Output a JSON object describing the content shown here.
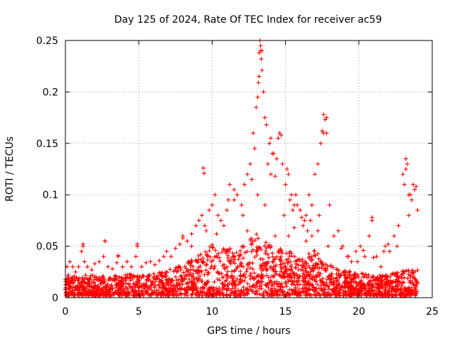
{
  "chart_data": {
    "type": "scatter",
    "title": "Day 125 of 2024, Rate Of TEC Index for receiver ac59",
    "xlabel": "GPS time / hours",
    "ylabel": "ROTI / TECUs",
    "xlim": [
      0,
      25
    ],
    "ylim": [
      0,
      0.25
    ],
    "x_ticks": [
      "0",
      "5",
      "10",
      "15",
      "20",
      "25"
    ],
    "y_ticks": [
      "0",
      "0.05",
      "0.1",
      "0.15",
      "0.2",
      "0.25"
    ],
    "x_tick_values": [
      0,
      5,
      10,
      15,
      20,
      25
    ],
    "y_tick_values": [
      0,
      0.05,
      0.1,
      0.15,
      0.2,
      0.25
    ],
    "grid": true,
    "legend": "none",
    "marker": "plus",
    "series_color": "#ff0000",
    "series": [
      {
        "x": [
          0.1,
          0.2,
          0.3,
          0.5,
          0.7,
          0.9,
          1.1,
          1.2,
          1.3,
          1.5,
          1.8,
          2.0,
          2.3,
          2.6,
          2.7,
          2.9,
          3.2,
          3.5,
          3.6,
          3.9,
          4.2,
          4.5,
          4.8,
          4.9,
          5.2,
          5.5,
          5.8,
          6.1,
          6.4,
          6.7,
          6.9,
          7.2,
          7.5,
          7.8,
          8.0,
          8.3,
          8.6,
          8.9,
          9.1,
          9.3,
          9.5,
          9.6,
          9.8,
          10.0,
          10.2,
          10.4,
          10.6,
          10.8,
          11.0,
          11.2,
          11.5,
          11.7,
          12.0,
          12.2,
          12.4,
          12.6,
          12.8,
          13.0,
          13.1,
          13.2,
          13.3,
          13.4,
          13.5,
          13.6,
          13.8,
          14.0,
          14.2,
          14.4,
          14.6,
          14.8,
          15.0,
          15.2,
          15.4,
          15.6,
          15.8,
          16.0,
          16.2,
          16.4,
          16.6,
          16.8,
          17.0,
          17.2,
          17.4,
          17.6,
          17.8,
          18.0,
          18.3,
          18.6,
          18.9,
          19.2,
          19.5,
          19.8,
          20.1,
          20.4,
          20.7,
          20.9,
          21.2,
          21.5,
          21.8,
          22.1,
          22.4,
          22.7,
          23.0,
          23.2,
          23.4,
          23.6,
          23.8,
          24.0,
          13.25,
          13.3,
          13.2,
          13.35,
          13.4,
          13.15,
          17.6,
          17.7,
          17.5,
          9.4,
          9.45,
          12.9,
          13.7,
          13.9,
          14.1,
          14.3,
          14.5,
          14.7,
          15.1,
          15.3,
          15.5,
          15.7,
          16.3,
          16.5,
          16.7,
          17.3,
          17.8,
          20.9,
          23.1,
          23.2,
          23.3,
          23.5,
          23.7,
          23.9,
          2.7,
          1.2,
          3.6,
          4.9,
          8.0,
          8.6,
          10.3,
          11.1,
          11.5,
          12.1,
          12.4,
          12.7,
          13.1,
          13.6,
          14.0,
          14.3,
          14.9,
          15.2,
          15.6,
          16.1,
          16.4,
          16.8,
          17.2,
          17.9,
          18.8,
          19.3,
          19.9,
          20.3,
          21.0,
          21.7,
          22.0,
          22.6,
          23.4
        ],
        "y": [
          0.03,
          0.022,
          0.035,
          0.03,
          0.025,
          0.03,
          0.045,
          0.052,
          0.035,
          0.03,
          0.027,
          0.033,
          0.035,
          0.04,
          0.055,
          0.03,
          0.028,
          0.034,
          0.04,
          0.03,
          0.035,
          0.03,
          0.04,
          0.05,
          0.03,
          0.034,
          0.035,
          0.032,
          0.036,
          0.04,
          0.045,
          0.04,
          0.048,
          0.052,
          0.06,
          0.055,
          0.062,
          0.07,
          0.075,
          0.08,
          0.07,
          0.065,
          0.085,
          0.09,
          0.1,
          0.08,
          0.075,
          0.07,
          0.085,
          0.11,
          0.095,
          0.1,
          0.09,
          0.11,
          0.12,
          0.13,
          0.16,
          0.185,
          0.195,
          0.215,
          0.24,
          0.24,
          0.2,
          0.175,
          0.13,
          0.155,
          0.14,
          0.135,
          0.16,
          0.13,
          0.11,
          0.12,
          0.1,
          0.09,
          0.09,
          0.085,
          0.07,
          0.08,
          0.1,
          0.09,
          0.12,
          0.13,
          0.15,
          0.16,
          0.175,
          0.09,
          0.06,
          0.065,
          0.05,
          0.04,
          0.035,
          0.045,
          0.05,
          0.04,
          0.06,
          0.078,
          0.04,
          0.03,
          0.05,
          0.045,
          0.06,
          0.07,
          0.12,
          0.135,
          0.1,
          0.095,
          0.105,
          0.085,
          0.25,
          0.245,
          0.238,
          0.232,
          0.221,
          0.209,
          0.178,
          0.173,
          0.162,
          0.126,
          0.121,
          0.145,
          0.168,
          0.15,
          0.14,
          0.118,
          0.155,
          0.158,
          0.125,
          0.095,
          0.085,
          0.1,
          0.075,
          0.065,
          0.075,
          0.08,
          0.16,
          0.075,
          0.11,
          0.125,
          0.13,
          0.1,
          0.11,
          0.108,
          0.055,
          0.05,
          0.041,
          0.052,
          0.058,
          0.05,
          0.062,
          0.095,
          0.105,
          0.08,
          0.065,
          0.115,
          0.1,
          0.09,
          0.12,
          0.06,
          0.08,
          0.06,
          0.068,
          0.078,
          0.055,
          0.06,
          0.065,
          0.05,
          0.048,
          0.04,
          0.035,
          0.046,
          0.039,
          0.045,
          0.052,
          0.05,
          0.08
        ]
      }
    ],
    "dense_band": {
      "x_range": [
        0,
        24
      ],
      "y_floor": 0.002,
      "y_top_by_hour": [
        0.018,
        0.02,
        0.02,
        0.018,
        0.022,
        0.02,
        0.022,
        0.025,
        0.03,
        0.04,
        0.05,
        0.045,
        0.05,
        0.06,
        0.05,
        0.045,
        0.04,
        0.045,
        0.03,
        0.025,
        0.022,
        0.02,
        0.02,
        0.025,
        0.025
      ]
    }
  }
}
